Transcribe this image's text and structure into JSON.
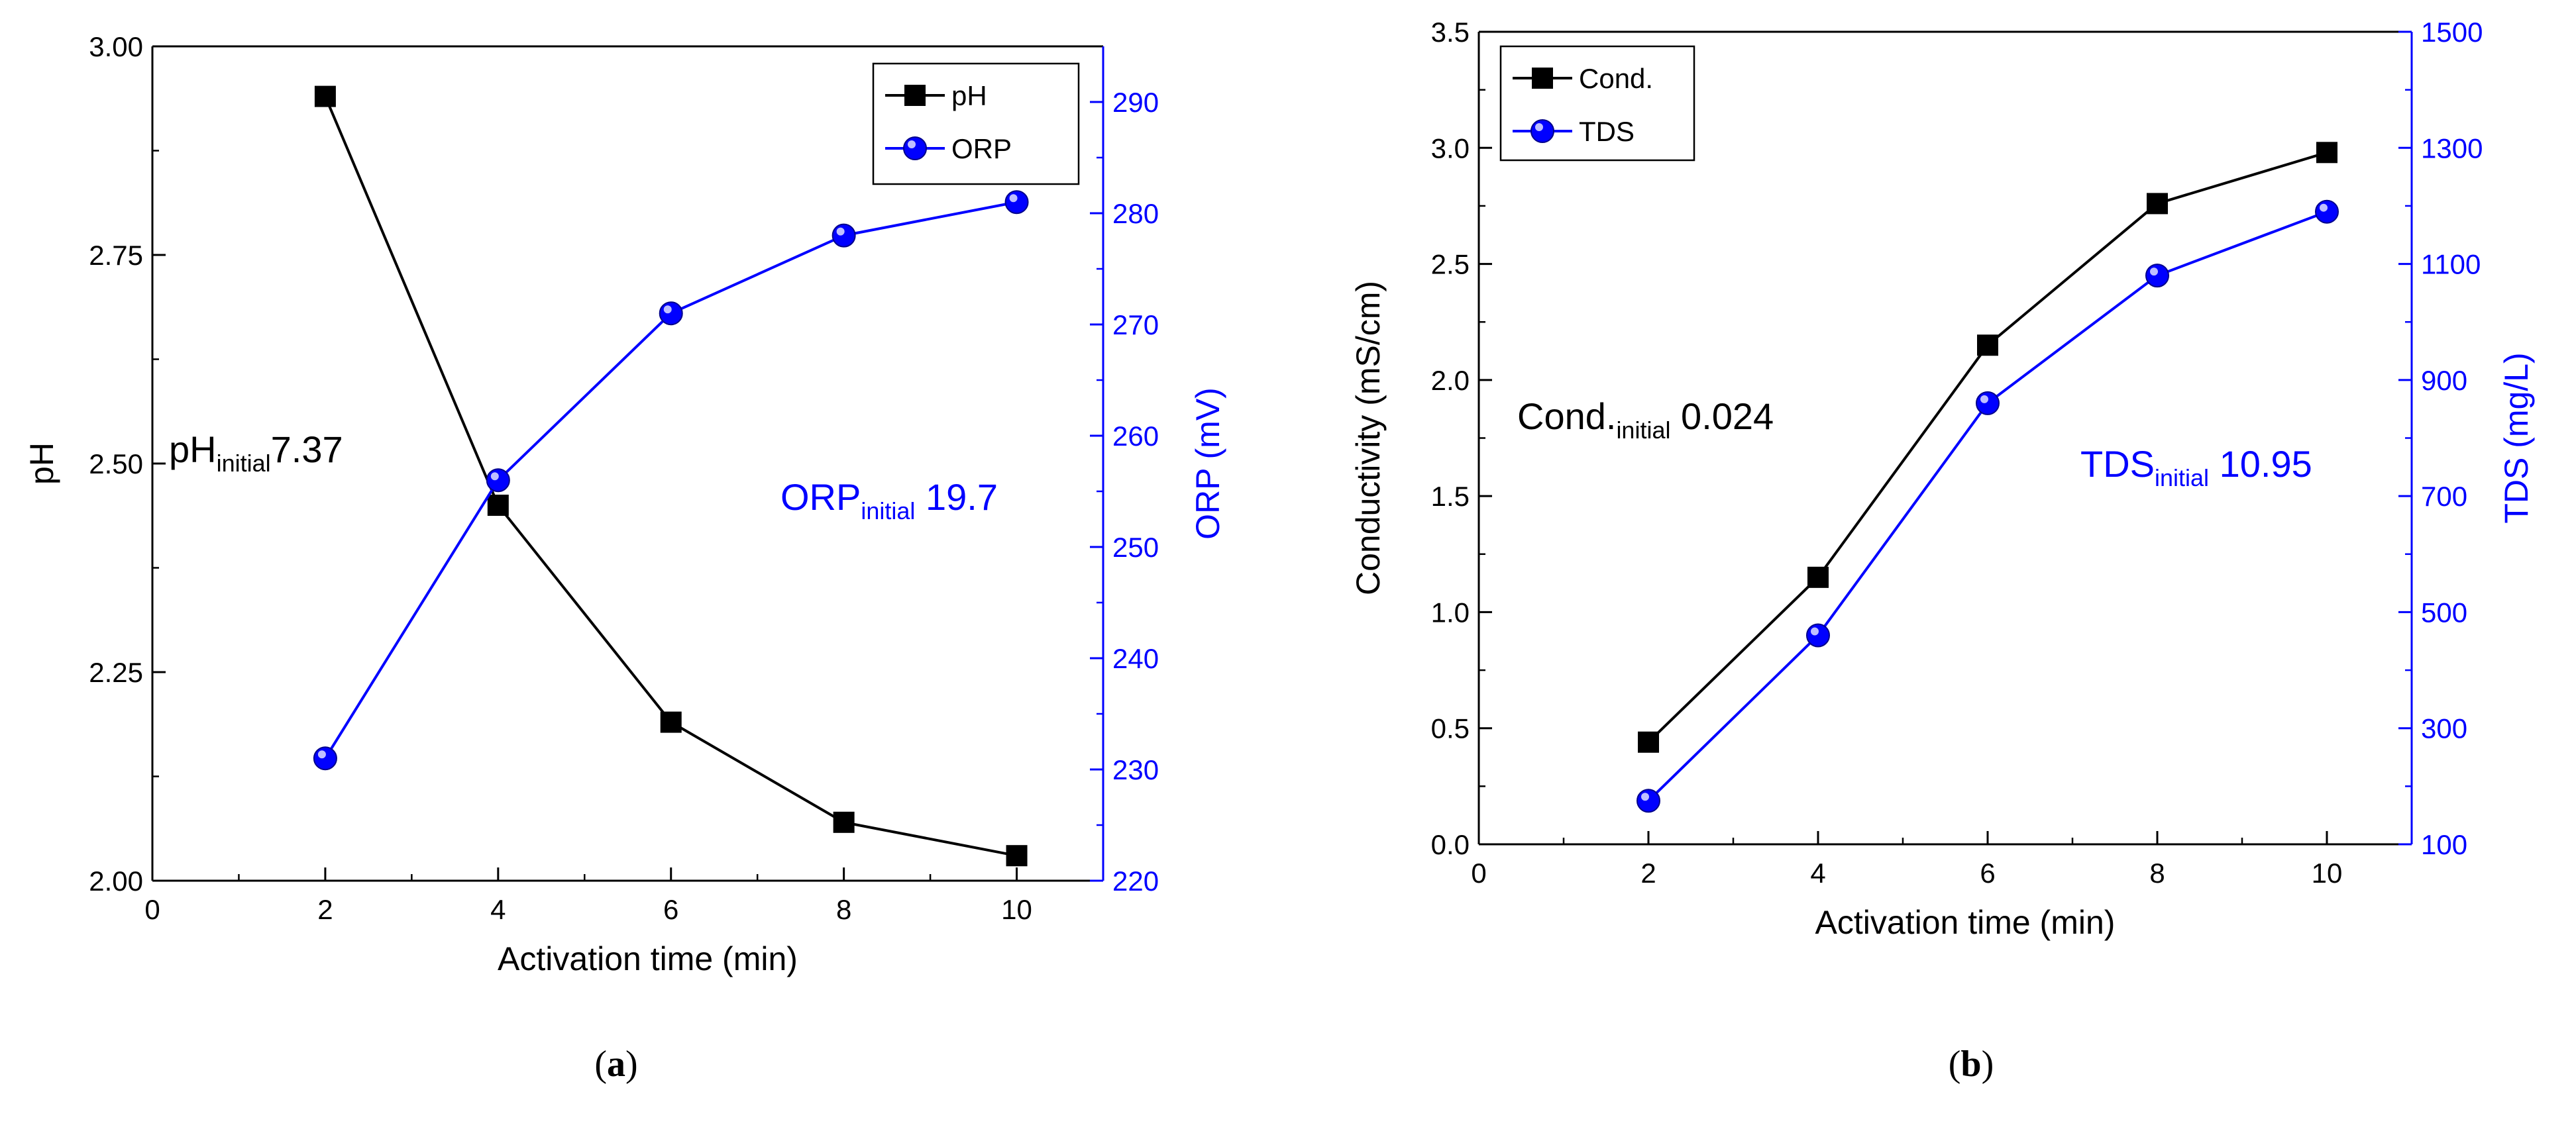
{
  "chart_data": [
    {
      "type": "line",
      "panel_label": "(a)",
      "panel_letter": "a",
      "xlabel": "Activation time (min)",
      "ylabel": "pH",
      "y2label": "ORP (mV)",
      "xlim": [
        0,
        11
      ],
      "ylim": [
        2.0,
        3.0
      ],
      "y2lim": [
        220,
        295
      ],
      "x_ticks": [
        "0",
        "2",
        "4",
        "6",
        "8",
        "10"
      ],
      "y_ticks": [
        "2.00",
        "2.25",
        "2.50",
        "2.75",
        "3.00"
      ],
      "y2_ticks": [
        "220",
        "230",
        "240",
        "250",
        "260",
        "270",
        "280",
        "290"
      ],
      "grid": false,
      "legend_position": "top-right",
      "x": [
        2,
        4,
        6,
        8,
        10
      ],
      "series": [
        {
          "name": "pH",
          "axis": "left",
          "marker": "square",
          "color": "#000000",
          "values": [
            2.94,
            2.45,
            2.19,
            2.07,
            2.03
          ]
        },
        {
          "name": "ORP",
          "axis": "right",
          "marker": "circle",
          "color": "#0000ff",
          "values": [
            231,
            256,
            271,
            278,
            281
          ]
        }
      ],
      "annotations": [
        {
          "main": "pH",
          "sub": "initial",
          "tail": "7.37",
          "color": "#000000"
        },
        {
          "main": "ORP",
          "sub": "initial",
          "tail": " 19.7",
          "color": "#0000ff"
        }
      ]
    },
    {
      "type": "line",
      "panel_label": "(b)",
      "panel_letter": "b",
      "xlabel": "Activation time (min)",
      "ylabel": "Conductivity (mS/cm)",
      "y2label": "TDS (mg/L)",
      "xlim": [
        0,
        11
      ],
      "ylim": [
        0.0,
        3.5
      ],
      "y2lim": [
        100,
        1500
      ],
      "x_ticks": [
        "0",
        "2",
        "4",
        "6",
        "8",
        "10"
      ],
      "y_ticks": [
        "0.0",
        "0.5",
        "1.0",
        "1.5",
        "2.0",
        "2.5",
        "3.0",
        "3.5"
      ],
      "y2_ticks": [
        "100",
        "300",
        "500",
        "700",
        "900",
        "1100",
        "1300",
        "1500"
      ],
      "grid": false,
      "legend_position": "top-left",
      "x": [
        2,
        4,
        6,
        8,
        10
      ],
      "series": [
        {
          "name": "Cond.",
          "axis": "left",
          "marker": "square",
          "color": "#000000",
          "values": [
            0.44,
            1.15,
            2.15,
            2.76,
            2.98
          ]
        },
        {
          "name": "TDS",
          "axis": "right",
          "marker": "circle",
          "color": "#0000ff",
          "values": [
            175,
            460,
            860,
            1080,
            1190
          ]
        }
      ],
      "annotations": [
        {
          "main": "Cond.",
          "sub": "initial",
          "tail": " 0.024",
          "color": "#000000"
        },
        {
          "main": "TDS",
          "sub": "initial",
          "tail": " 10.95",
          "color": "#0000ff"
        }
      ]
    }
  ]
}
